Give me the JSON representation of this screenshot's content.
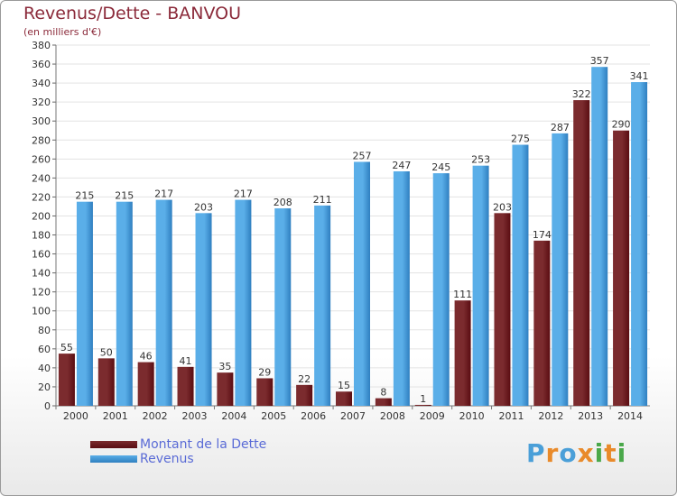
{
  "header": {
    "title": "Revenus/Dette - BANVOU",
    "subtitle": "(en milliers d'€)"
  },
  "colors": {
    "debt_main": "#7b2b2e",
    "debt_dark": "#5a0d12",
    "revenue_main": "#5aaee8",
    "revenue_dark": "#2f7fc0",
    "axis_text": "#333333",
    "grid": "#e3e3e3"
  },
  "chart_data": {
    "type": "bar",
    "categories": [
      "2000",
      "2001",
      "2002",
      "2003",
      "2004",
      "2005",
      "2006",
      "2007",
      "2008",
      "2009",
      "2010",
      "2011",
      "2012",
      "2013",
      "2014"
    ],
    "series": [
      {
        "name": "Montant de la Dette",
        "values": [
          55,
          50,
          46,
          41,
          35,
          29,
          22,
          15,
          8,
          1,
          111,
          203,
          174,
          322,
          290
        ]
      },
      {
        "name": "Revenus",
        "values": [
          215,
          215,
          217,
          203,
          217,
          208,
          211,
          257,
          247,
          245,
          253,
          275,
          287,
          357,
          341
        ]
      }
    ],
    "yticks": [
      0,
      20,
      40,
      60,
      80,
      100,
      120,
      140,
      160,
      180,
      200,
      220,
      240,
      260,
      280,
      300,
      320,
      340,
      360,
      380
    ],
    "ylim": [
      0,
      380
    ],
    "grid": true,
    "legend_position": "bottom-left"
  },
  "legend": {
    "items": [
      {
        "label": "Montant de la Dette",
        "color": "#7b2b2e"
      },
      {
        "label": "Revenus",
        "color": "#5aaee8"
      }
    ]
  },
  "logo": {
    "text": "Proxiti",
    "letters": [
      {
        "ch": "P",
        "color": "#4a9fd8"
      },
      {
        "ch": "r",
        "color": "#e98a2a"
      },
      {
        "ch": "o",
        "color": "#4a9fd8"
      },
      {
        "ch": "x",
        "color": "#e98a2a"
      },
      {
        "ch": "i",
        "color": "#4aa84a"
      },
      {
        "ch": "t",
        "color": "#e98a2a"
      },
      {
        "ch": "i",
        "color": "#4aa84a"
      }
    ]
  }
}
